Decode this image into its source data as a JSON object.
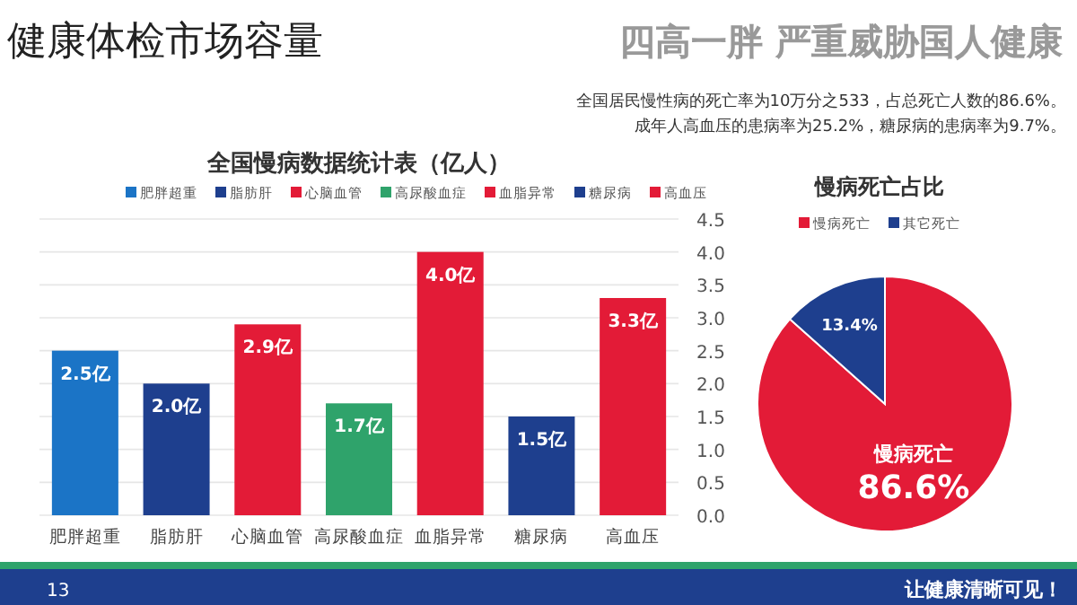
{
  "chart_data": [
    {
      "type": "bar",
      "title": "全国慢病数据统计表（亿人）",
      "categories": [
        "肥胖超重",
        "脂肪肝",
        "心脑血管",
        "高尿酸血症",
        "血脂异常",
        "糖尿病",
        "高血压"
      ],
      "series": [
        {
          "name": "肥胖超重",
          "color": "#1b74c6",
          "values": [
            2.5,
            null,
            null,
            null,
            null,
            null,
            null
          ],
          "value_labels": [
            "2.5亿",
            null,
            null,
            null,
            null,
            null,
            null
          ]
        },
        {
          "name": "脂肪肝",
          "color": "#1e3f8e",
          "values": [
            null,
            2.0,
            null,
            null,
            null,
            null,
            null
          ],
          "value_labels": [
            null,
            "2.0亿",
            null,
            null,
            null,
            null,
            null
          ]
        },
        {
          "name": "心脑血管",
          "color": "#e31b37",
          "values": [
            null,
            null,
            2.9,
            null,
            null,
            null,
            null
          ],
          "value_labels": [
            null,
            null,
            "2.9亿",
            null,
            null,
            null,
            null
          ]
        },
        {
          "name": "高尿酸血症",
          "color": "#2fa36b",
          "values": [
            null,
            null,
            null,
            1.7,
            null,
            null,
            null
          ],
          "value_labels": [
            null,
            null,
            null,
            "1.7亿",
            null,
            null,
            null
          ]
        },
        {
          "name": "血脂异常",
          "color": "#e31b37",
          "values": [
            null,
            null,
            null,
            null,
            4.0,
            null,
            null
          ],
          "value_labels": [
            null,
            null,
            null,
            null,
            "4.0亿",
            null,
            null
          ]
        },
        {
          "name": "糖尿病",
          "color": "#1e3f8e",
          "values": [
            null,
            null,
            null,
            null,
            null,
            1.5,
            null
          ],
          "value_labels": [
            null,
            null,
            null,
            null,
            null,
            "1.5亿",
            null
          ]
        },
        {
          "name": "高血压",
          "color": "#e31b37",
          "values": [
            null,
            null,
            null,
            null,
            null,
            null,
            3.3
          ],
          "value_labels": [
            null,
            null,
            null,
            null,
            null,
            null,
            "3.3亿"
          ]
        }
      ],
      "ylim": [
        0,
        4.5
      ],
      "yticks": [
        {
          "value": 0,
          "label": "0.0"
        },
        {
          "value": 0.5,
          "label": "0.5"
        },
        {
          "value": 1,
          "label": "1.0"
        },
        {
          "value": 1.5,
          "label": "1.5"
        },
        {
          "value": 2,
          "label": "2.0"
        },
        {
          "value": 2.5,
          "label": "2.5"
        },
        {
          "value": 3,
          "label": "3.0"
        },
        {
          "value": 3.5,
          "label": "3.5"
        },
        {
          "value": 4,
          "label": "4.0"
        },
        {
          "value": 4.5,
          "label": "4.5"
        }
      ],
      "grid": "y",
      "legend": "top",
      "annotations": [
        "健康体检市场容量",
        "四高一胖 严重威胁国人健康",
        "全国居民慢性病的死亡率为10万分之533，占总死亡人数的86.6%。",
        "成年人高血压的患病率为25.2%，糖尿病的患病率为9.7%。",
        "让健康清晰可见！",
        "13"
      ]
    },
    {
      "type": "pie",
      "title": "慢病死亡占比",
      "categories": [
        "慢病死亡",
        "其它死亡"
      ],
      "values": [
        86.6,
        13.4
      ],
      "colors": [
        "#e31b37",
        "#1e3f8e"
      ],
      "value_labels": [
        "86.6%",
        "13.4%"
      ],
      "legend": "top"
    }
  ]
}
